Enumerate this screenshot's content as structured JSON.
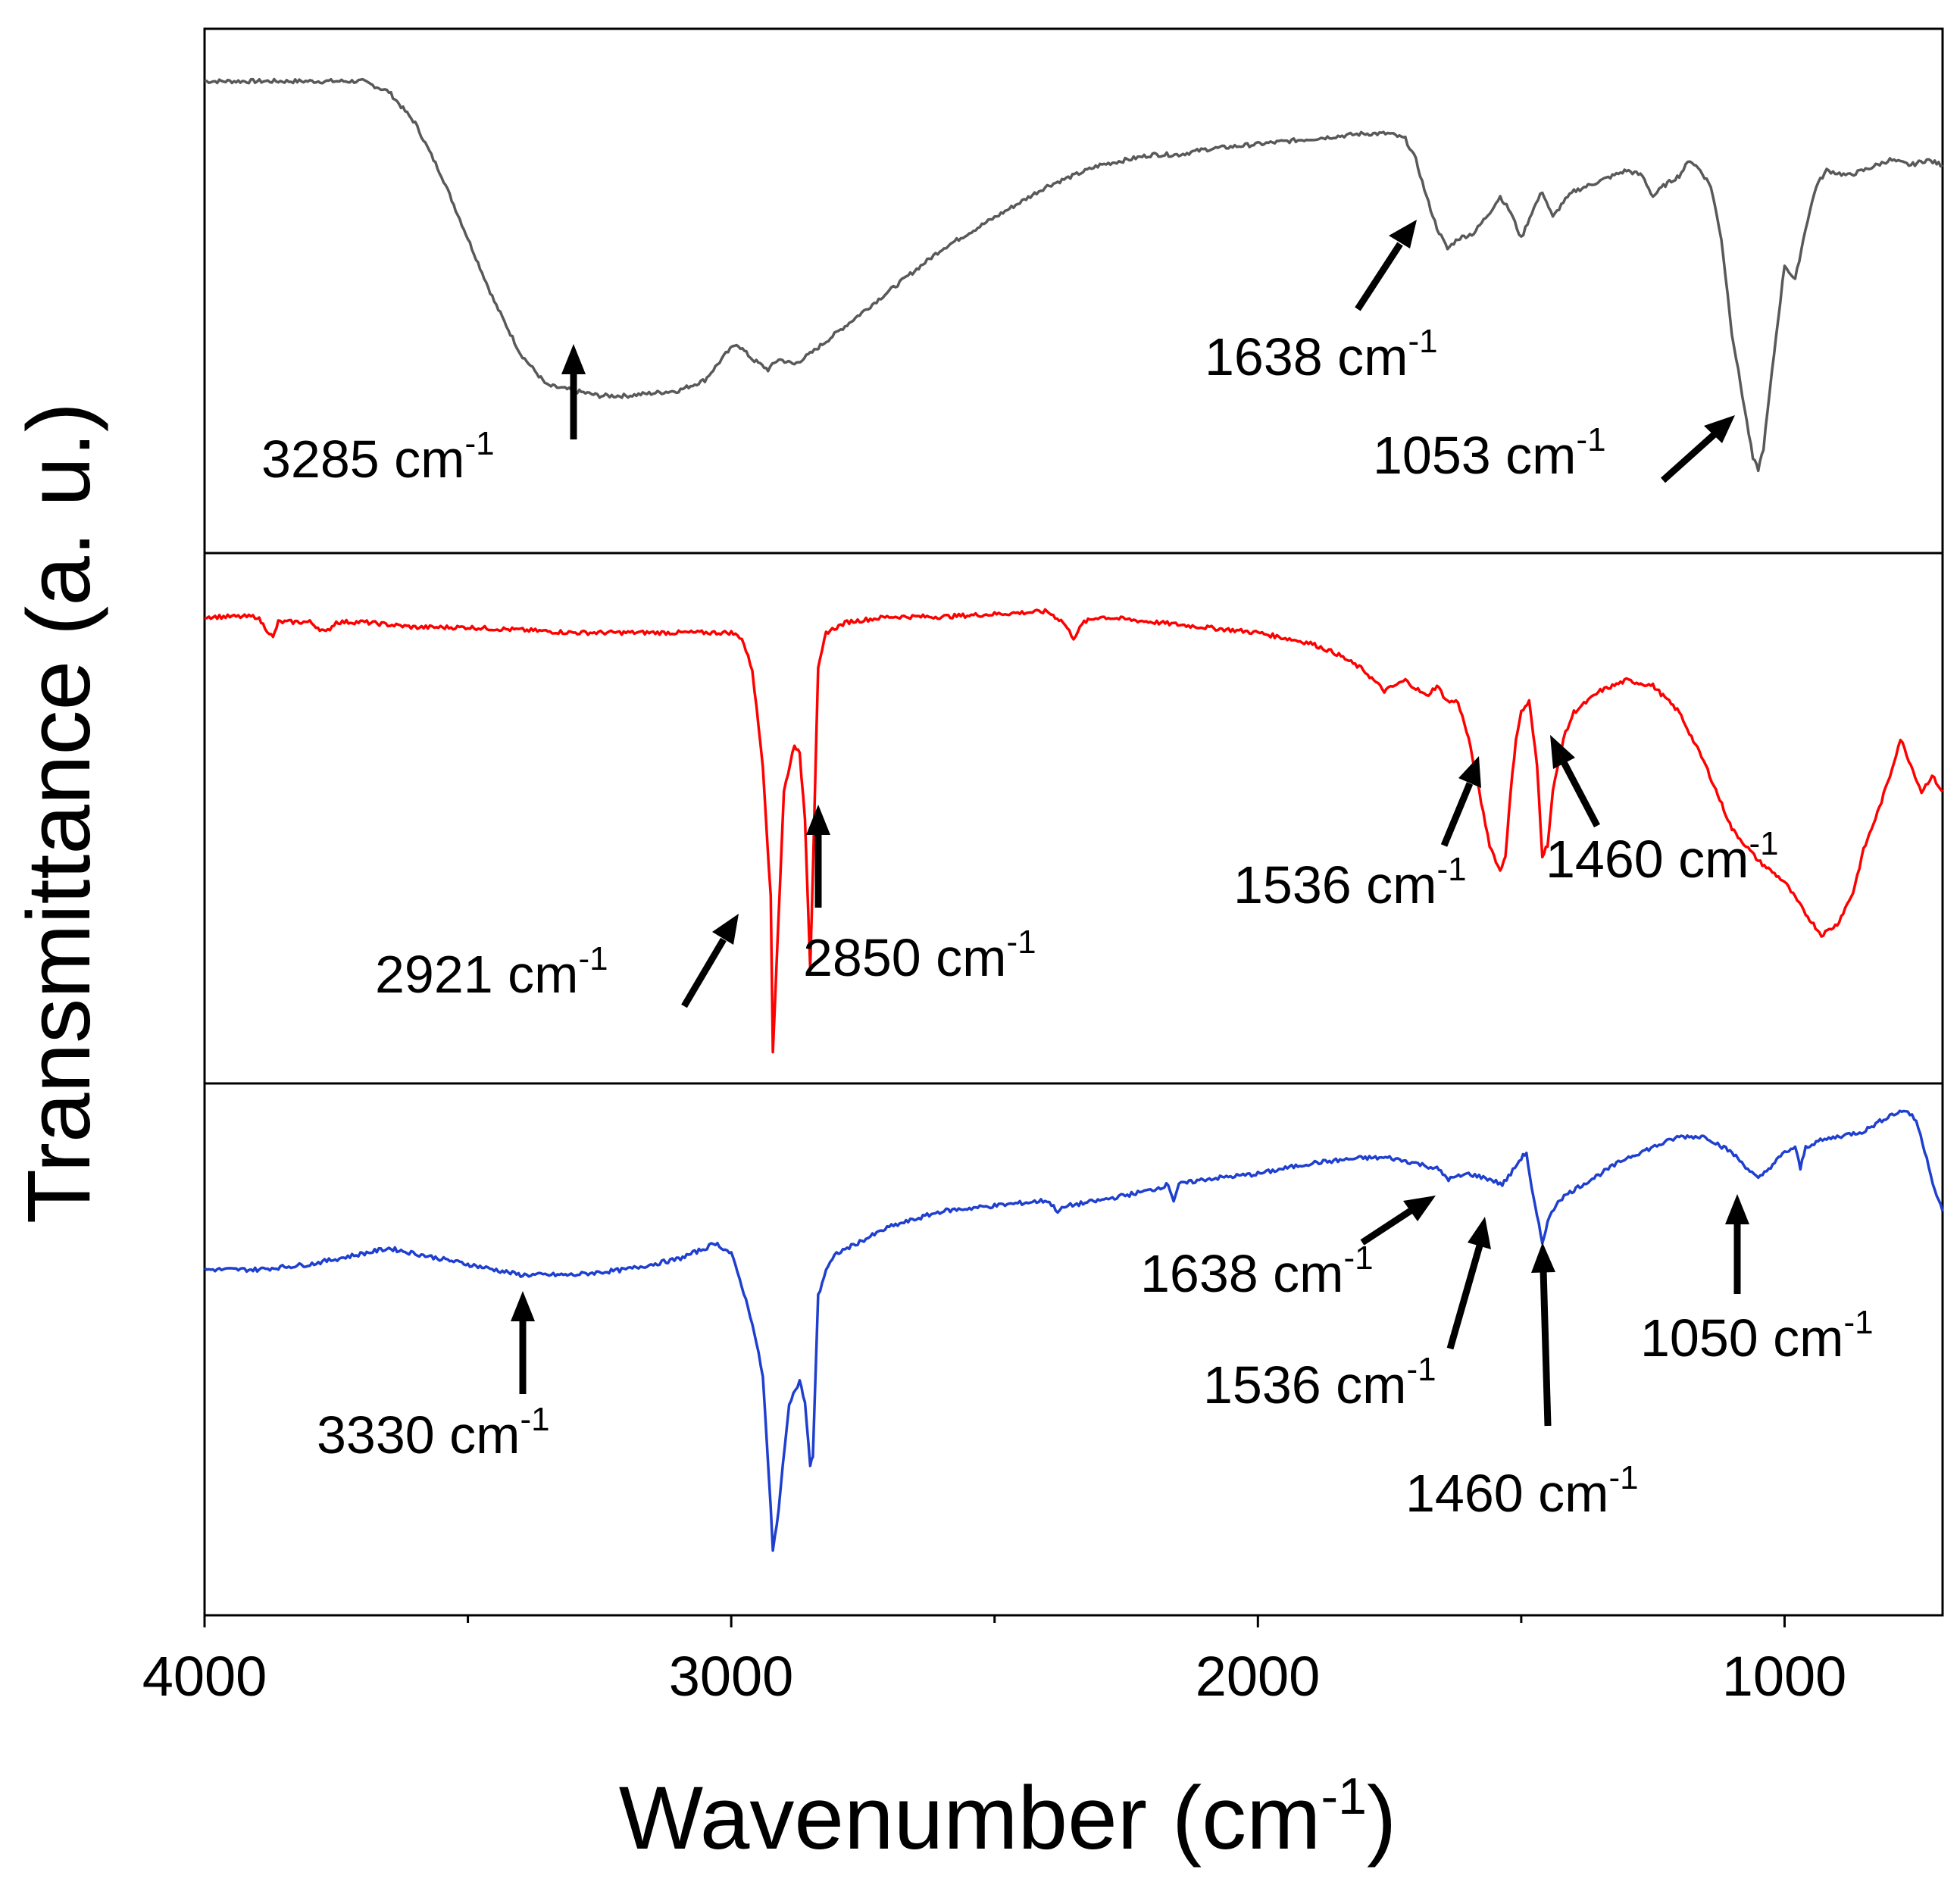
{
  "chart_data": {
    "type": "line",
    "xlabel": "Wavenumber (cm",
    "xlabel_sup": "-1",
    "xlabel_tail": ")",
    "ylabel": "Transmittance (a. u.)",
    "xlim": [
      4000,
      700
    ],
    "x_ticks": [
      4000,
      3000,
      2000,
      1000
    ],
    "x_tick_labels": [
      "4000",
      "3000",
      "2000",
      "1000"
    ],
    "x_minor_ticks": [
      3500,
      2500,
      1500
    ],
    "grid": false,
    "legend": "none",
    "panels": [
      {
        "name": "top",
        "color": "#595959",
        "noise": 0.004,
        "points": [
          [
            4000,
            0.9
          ],
          [
            3800,
            0.9
          ],
          [
            3700,
            0.9
          ],
          [
            3650,
            0.88
          ],
          [
            3600,
            0.82
          ],
          [
            3550,
            0.72
          ],
          [
            3500,
            0.6
          ],
          [
            3450,
            0.48
          ],
          [
            3400,
            0.38
          ],
          [
            3350,
            0.32
          ],
          [
            3300,
            0.31
          ],
          [
            3250,
            0.3
          ],
          [
            3200,
            0.3
          ],
          [
            3100,
            0.31
          ],
          [
            3050,
            0.33
          ],
          [
            3010,
            0.38
          ],
          [
            2990,
            0.4
          ],
          [
            2960,
            0.37
          ],
          [
            2930,
            0.35
          ],
          [
            2910,
            0.37
          ],
          [
            2880,
            0.36
          ],
          [
            2850,
            0.38
          ],
          [
            2800,
            0.42
          ],
          [
            2700,
            0.5
          ],
          [
            2600,
            0.58
          ],
          [
            2500,
            0.64
          ],
          [
            2400,
            0.7
          ],
          [
            2300,
            0.74
          ],
          [
            2200,
            0.76
          ],
          [
            2150,
            0.76
          ],
          [
            2100,
            0.77
          ],
          [
            2000,
            0.78
          ],
          [
            1900,
            0.79
          ],
          [
            1800,
            0.8
          ],
          [
            1750,
            0.8
          ],
          [
            1720,
            0.79
          ],
          [
            1700,
            0.75
          ],
          [
            1680,
            0.68
          ],
          [
            1660,
            0.62
          ],
          [
            1640,
            0.58
          ],
          [
            1620,
            0.6
          ],
          [
            1590,
            0.61
          ],
          [
            1560,
            0.65
          ],
          [
            1540,
            0.68
          ],
          [
            1520,
            0.65
          ],
          [
            1500,
            0.6
          ],
          [
            1480,
            0.65
          ],
          [
            1460,
            0.69
          ],
          [
            1440,
            0.64
          ],
          [
            1420,
            0.67
          ],
          [
            1400,
            0.69
          ],
          [
            1350,
            0.71
          ],
          [
            1300,
            0.73
          ],
          [
            1270,
            0.72
          ],
          [
            1250,
            0.68
          ],
          [
            1230,
            0.7
          ],
          [
            1200,
            0.72
          ],
          [
            1180,
            0.75
          ],
          [
            1160,
            0.73
          ],
          [
            1140,
            0.7
          ],
          [
            1120,
            0.6
          ],
          [
            1100,
            0.42
          ],
          [
            1080,
            0.3
          ],
          [
            1060,
            0.18
          ],
          [
            1050,
            0.16
          ],
          [
            1040,
            0.2
          ],
          [
            1020,
            0.38
          ],
          [
            1000,
            0.55
          ],
          [
            980,
            0.52
          ],
          [
            960,
            0.62
          ],
          [
            940,
            0.7
          ],
          [
            920,
            0.73
          ],
          [
            880,
            0.72
          ],
          [
            850,
            0.73
          ],
          [
            800,
            0.75
          ],
          [
            760,
            0.74
          ],
          [
            730,
            0.75
          ],
          [
            700,
            0.74
          ]
        ]
      },
      {
        "name": "middle",
        "color": "#ff0000",
        "noise": 0.004,
        "points": [
          [
            4000,
            0.88
          ],
          [
            3900,
            0.88
          ],
          [
            3870,
            0.84
          ],
          [
            3860,
            0.87
          ],
          [
            3800,
            0.87
          ],
          [
            3770,
            0.85
          ],
          [
            3750,
            0.87
          ],
          [
            3700,
            0.87
          ],
          [
            3600,
            0.86
          ],
          [
            3500,
            0.86
          ],
          [
            3300,
            0.85
          ],
          [
            3100,
            0.85
          ],
          [
            3000,
            0.85
          ],
          [
            2980,
            0.84
          ],
          [
            2960,
            0.78
          ],
          [
            2940,
            0.6
          ],
          [
            2925,
            0.35
          ],
          [
            2921,
            0.06
          ],
          [
            2915,
            0.2
          ],
          [
            2900,
            0.55
          ],
          [
            2880,
            0.64
          ],
          [
            2870,
            0.62
          ],
          [
            2860,
            0.5
          ],
          [
            2850,
            0.22
          ],
          [
            2845,
            0.4
          ],
          [
            2835,
            0.78
          ],
          [
            2820,
            0.85
          ],
          [
            2780,
            0.87
          ],
          [
            2700,
            0.88
          ],
          [
            2600,
            0.88
          ],
          [
            2400,
            0.89
          ],
          [
            2370,
            0.87
          ],
          [
            2350,
            0.84
          ],
          [
            2330,
            0.87
          ],
          [
            2300,
            0.88
          ],
          [
            2200,
            0.87
          ],
          [
            2100,
            0.86
          ],
          [
            2000,
            0.85
          ],
          [
            1900,
            0.83
          ],
          [
            1850,
            0.81
          ],
          [
            1800,
            0.78
          ],
          [
            1760,
            0.74
          ],
          [
            1720,
            0.76
          ],
          [
            1680,
            0.73
          ],
          [
            1660,
            0.75
          ],
          [
            1640,
            0.72
          ],
          [
            1620,
            0.72
          ],
          [
            1600,
            0.65
          ],
          [
            1580,
            0.55
          ],
          [
            1560,
            0.45
          ],
          [
            1540,
            0.4
          ],
          [
            1530,
            0.43
          ],
          [
            1520,
            0.55
          ],
          [
            1510,
            0.65
          ],
          [
            1500,
            0.7
          ],
          [
            1485,
            0.72
          ],
          [
            1470,
            0.6
          ],
          [
            1460,
            0.43
          ],
          [
            1450,
            0.45
          ],
          [
            1440,
            0.55
          ],
          [
            1420,
            0.65
          ],
          [
            1400,
            0.7
          ],
          [
            1350,
            0.74
          ],
          [
            1300,
            0.76
          ],
          [
            1250,
            0.75
          ],
          [
            1200,
            0.7
          ],
          [
            1150,
            0.6
          ],
          [
            1100,
            0.48
          ],
          [
            1050,
            0.42
          ],
          [
            1000,
            0.38
          ],
          [
            960,
            0.32
          ],
          [
            930,
            0.28
          ],
          [
            900,
            0.3
          ],
          [
            870,
            0.36
          ],
          [
            850,
            0.44
          ],
          [
            820,
            0.52
          ],
          [
            800,
            0.58
          ],
          [
            780,
            0.65
          ],
          [
            760,
            0.6
          ],
          [
            740,
            0.55
          ],
          [
            720,
            0.58
          ],
          [
            700,
            0.55
          ]
        ]
      },
      {
        "name": "bottom",
        "color": "#1f3fcf",
        "noise": 0.004,
        "points": [
          [
            4000,
            0.65
          ],
          [
            3900,
            0.65
          ],
          [
            3800,
            0.66
          ],
          [
            3700,
            0.68
          ],
          [
            3650,
            0.69
          ],
          [
            3600,
            0.68
          ],
          [
            3550,
            0.67
          ],
          [
            3500,
            0.66
          ],
          [
            3450,
            0.65
          ],
          [
            3400,
            0.64
          ],
          [
            3330,
            0.64
          ],
          [
            3300,
            0.64
          ],
          [
            3200,
            0.65
          ],
          [
            3100,
            0.67
          ],
          [
            3050,
            0.69
          ],
          [
            3030,
            0.7
          ],
          [
            3000,
            0.68
          ],
          [
            2980,
            0.62
          ],
          [
            2960,
            0.55
          ],
          [
            2940,
            0.45
          ],
          [
            2925,
            0.2
          ],
          [
            2921,
            0.12
          ],
          [
            2910,
            0.2
          ],
          [
            2890,
            0.4
          ],
          [
            2870,
            0.44
          ],
          [
            2860,
            0.4
          ],
          [
            2850,
            0.28
          ],
          [
            2845,
            0.3
          ],
          [
            2835,
            0.6
          ],
          [
            2820,
            0.65
          ],
          [
            2800,
            0.68
          ],
          [
            2700,
            0.73
          ],
          [
            2600,
            0.76
          ],
          [
            2500,
            0.77
          ],
          [
            2400,
            0.78
          ],
          [
            2380,
            0.76
          ],
          [
            2360,
            0.77
          ],
          [
            2300,
            0.78
          ],
          [
            2200,
            0.8
          ],
          [
            2170,
            0.81
          ],
          [
            2160,
            0.78
          ],
          [
            2150,
            0.81
          ],
          [
            2100,
            0.82
          ],
          [
            2000,
            0.83
          ],
          [
            1900,
            0.85
          ],
          [
            1800,
            0.86
          ],
          [
            1750,
            0.86
          ],
          [
            1700,
            0.85
          ],
          [
            1660,
            0.84
          ],
          [
            1638,
            0.82
          ],
          [
            1600,
            0.83
          ],
          [
            1560,
            0.82
          ],
          [
            1536,
            0.81
          ],
          [
            1520,
            0.83
          ],
          [
            1500,
            0.86
          ],
          [
            1490,
            0.87
          ],
          [
            1480,
            0.8
          ],
          [
            1470,
            0.75
          ],
          [
            1460,
            0.7
          ],
          [
            1450,
            0.74
          ],
          [
            1430,
            0.78
          ],
          [
            1400,
            0.8
          ],
          [
            1350,
            0.83
          ],
          [
            1300,
            0.86
          ],
          [
            1250,
            0.88
          ],
          [
            1200,
            0.9
          ],
          [
            1150,
            0.9
          ],
          [
            1100,
            0.87
          ],
          [
            1070,
            0.84
          ],
          [
            1050,
            0.82
          ],
          [
            1030,
            0.84
          ],
          [
            1000,
            0.87
          ],
          [
            980,
            0.88
          ],
          [
            970,
            0.84
          ],
          [
            960,
            0.88
          ],
          [
            940,
            0.89
          ],
          [
            900,
            0.9
          ],
          [
            850,
            0.91
          ],
          [
            800,
            0.94
          ],
          [
            770,
            0.95
          ],
          [
            750,
            0.93
          ],
          [
            730,
            0.86
          ],
          [
            715,
            0.8
          ],
          [
            700,
            0.76
          ]
        ]
      }
    ],
    "annotations": [
      {
        "panel": "top",
        "label": "3285 cm",
        "sup": "-1"
      },
      {
        "panel": "top",
        "label": "1638 cm",
        "sup": "-1"
      },
      {
        "panel": "top",
        "label": "1053 cm",
        "sup": "-1"
      },
      {
        "panel": "middle",
        "label": "2921 cm",
        "sup": "-1"
      },
      {
        "panel": "middle",
        "label": "2850 cm",
        "sup": "-1"
      },
      {
        "panel": "middle",
        "label": "1536 cm",
        "sup": "-1"
      },
      {
        "panel": "middle",
        "label": "1460 cm",
        "sup": "-1"
      },
      {
        "panel": "bottom",
        "label": "3330 cm",
        "sup": "-1"
      },
      {
        "panel": "bottom",
        "label": "1638 cm",
        "sup": "-1"
      },
      {
        "panel": "bottom",
        "label": "1536 cm",
        "sup": "-1"
      },
      {
        "panel": "bottom",
        "label": "1460 cm",
        "sup": "-1"
      },
      {
        "panel": "bottom",
        "label": "1050 cm",
        "sup": "-1"
      }
    ]
  }
}
